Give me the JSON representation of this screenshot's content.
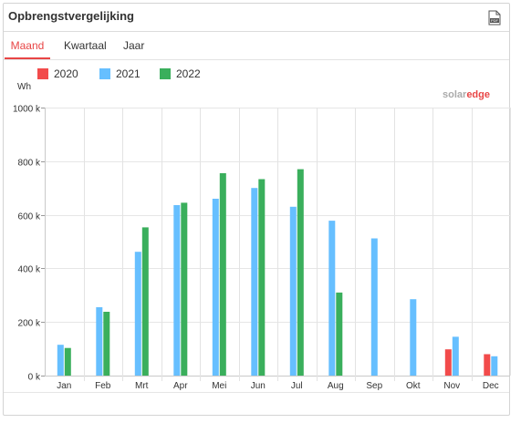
{
  "widget": {
    "title": "Opbrengstvergelijking",
    "export_icon": "pdf-file-icon"
  },
  "tabs": [
    {
      "label": "Maand",
      "active": true
    },
    {
      "label": "Kwartaal",
      "active": false
    },
    {
      "label": "Jaar",
      "active": false
    }
  ],
  "brand": {
    "part1": "solar",
    "part2": "edge"
  },
  "colors": {
    "2020": "#f24b4b",
    "2021": "#66bfff",
    "2022": "#3aaf5c",
    "accent": "#e84545"
  },
  "chart_data": {
    "type": "bar",
    "unit_label": "Wh",
    "categories": [
      "Jan",
      "Feb",
      "Mrt",
      "Apr",
      "Mei",
      "Jun",
      "Jul",
      "Aug",
      "Sep",
      "Okt",
      "Nov",
      "Dec"
    ],
    "y_ticks": [
      {
        "value": 0,
        "label": "0 k"
      },
      {
        "value": 200000,
        "label": "200 k"
      },
      {
        "value": 400000,
        "label": "400 k"
      },
      {
        "value": 600000,
        "label": "600 k"
      },
      {
        "value": 800000,
        "label": "800 k"
      },
      {
        "value": 1000000,
        "label": "1000 k"
      }
    ],
    "ylim": [
      0,
      1000000
    ],
    "grid": true,
    "legend_position": "top-left",
    "series": [
      {
        "name": "2020",
        "values": [
          null,
          null,
          null,
          null,
          null,
          null,
          null,
          null,
          null,
          null,
          98000,
          80000
        ]
      },
      {
        "name": "2021",
        "values": [
          115000,
          255000,
          462000,
          636000,
          660000,
          700000,
          630000,
          578000,
          512000,
          285000,
          145000,
          72000
        ]
      },
      {
        "name": "2022",
        "values": [
          103000,
          238000,
          553000,
          645000,
          755000,
          733000,
          770000,
          310000,
          null,
          null,
          null,
          null
        ]
      }
    ]
  }
}
